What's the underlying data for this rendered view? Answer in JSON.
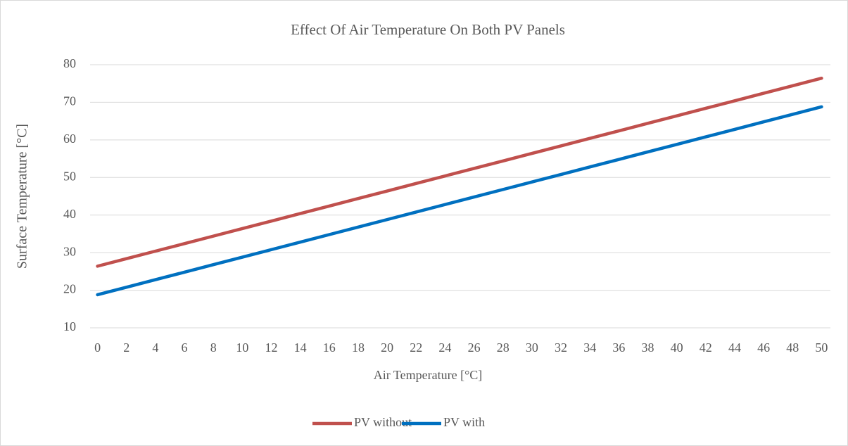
{
  "chart_data": {
    "type": "line",
    "title": "Effect Of Air Temperature On Both PV Panels",
    "x_label": "Air Temperature [°C]",
    "y_label": "Surface Temperature [°C]",
    "categories": [
      0,
      2,
      4,
      6,
      8,
      10,
      12,
      14,
      16,
      18,
      20,
      22,
      24,
      26,
      28,
      30,
      32,
      34,
      36,
      38,
      40,
      42,
      44,
      46,
      48,
      50
    ],
    "series": [
      {
        "name": "PV without",
        "color": "#c0504d",
        "values": [
          26.4,
          28.4,
          30.4,
          32.4,
          34.4,
          36.4,
          38.4,
          40.4,
          42.4,
          44.4,
          46.4,
          48.4,
          50.4,
          52.4,
          54.4,
          56.4,
          58.4,
          60.4,
          62.4,
          64.4,
          66.4,
          68.4,
          70.4,
          72.4,
          74.4,
          76.4
        ]
      },
      {
        "name": "PV with",
        "color": "#0070c0",
        "values": [
          18.8,
          20.8,
          22.8,
          24.8,
          26.8,
          28.8,
          30.8,
          32.8,
          34.8,
          36.8,
          38.8,
          40.8,
          42.8,
          44.8,
          46.8,
          48.8,
          50.8,
          52.8,
          54.8,
          56.8,
          58.8,
          60.8,
          62.8,
          64.8,
          66.8,
          68.8
        ]
      }
    ],
    "ylim": [
      10,
      80
    ],
    "yticks": [
      10,
      20,
      30,
      40,
      50,
      60,
      70,
      80
    ],
    "grid": true,
    "legend": "bottom"
  }
}
